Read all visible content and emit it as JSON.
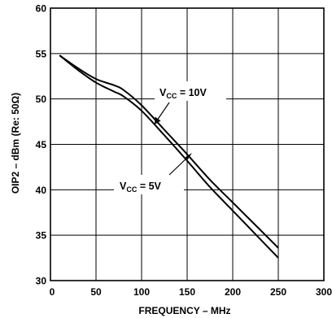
{
  "chart_data": {
    "type": "line",
    "xlabel": "FREQUENCY – MHz",
    "ylabel": "OIP2 – dBm (Re: 50Ω)",
    "xlim": [
      0,
      300
    ],
    "ylim": [
      30,
      60
    ],
    "x_ticks": [
      "0",
      "50",
      "100",
      "150",
      "200",
      "250",
      "300"
    ],
    "y_ticks": [
      "30",
      "35",
      "40",
      "45",
      "50",
      "55",
      "60"
    ],
    "grid": true,
    "series": [
      {
        "name": "VCC = 10V",
        "label_main": "V",
        "label_sub": "CC",
        "label_tail": " = 10V",
        "x": [
          10,
          30,
          50,
          70,
          80,
          100,
          125,
          150,
          175,
          200,
          225,
          250
        ],
        "y": [
          54.8,
          53.4,
          52.2,
          51.5,
          51.0,
          49.3,
          46.6,
          43.9,
          41.1,
          38.6,
          36.1,
          33.6
        ]
      },
      {
        "name": "VCC = 5V",
        "label_main": "V",
        "label_sub": "CC",
        "label_tail": " = 5V",
        "x": [
          10,
          30,
          50,
          70,
          80,
          100,
          125,
          150,
          175,
          200,
          225,
          250
        ],
        "y": [
          54.8,
          53.2,
          51.8,
          50.8,
          50.3,
          48.7,
          46.0,
          43.2,
          40.3,
          37.7,
          35.1,
          32.5
        ]
      }
    ]
  }
}
